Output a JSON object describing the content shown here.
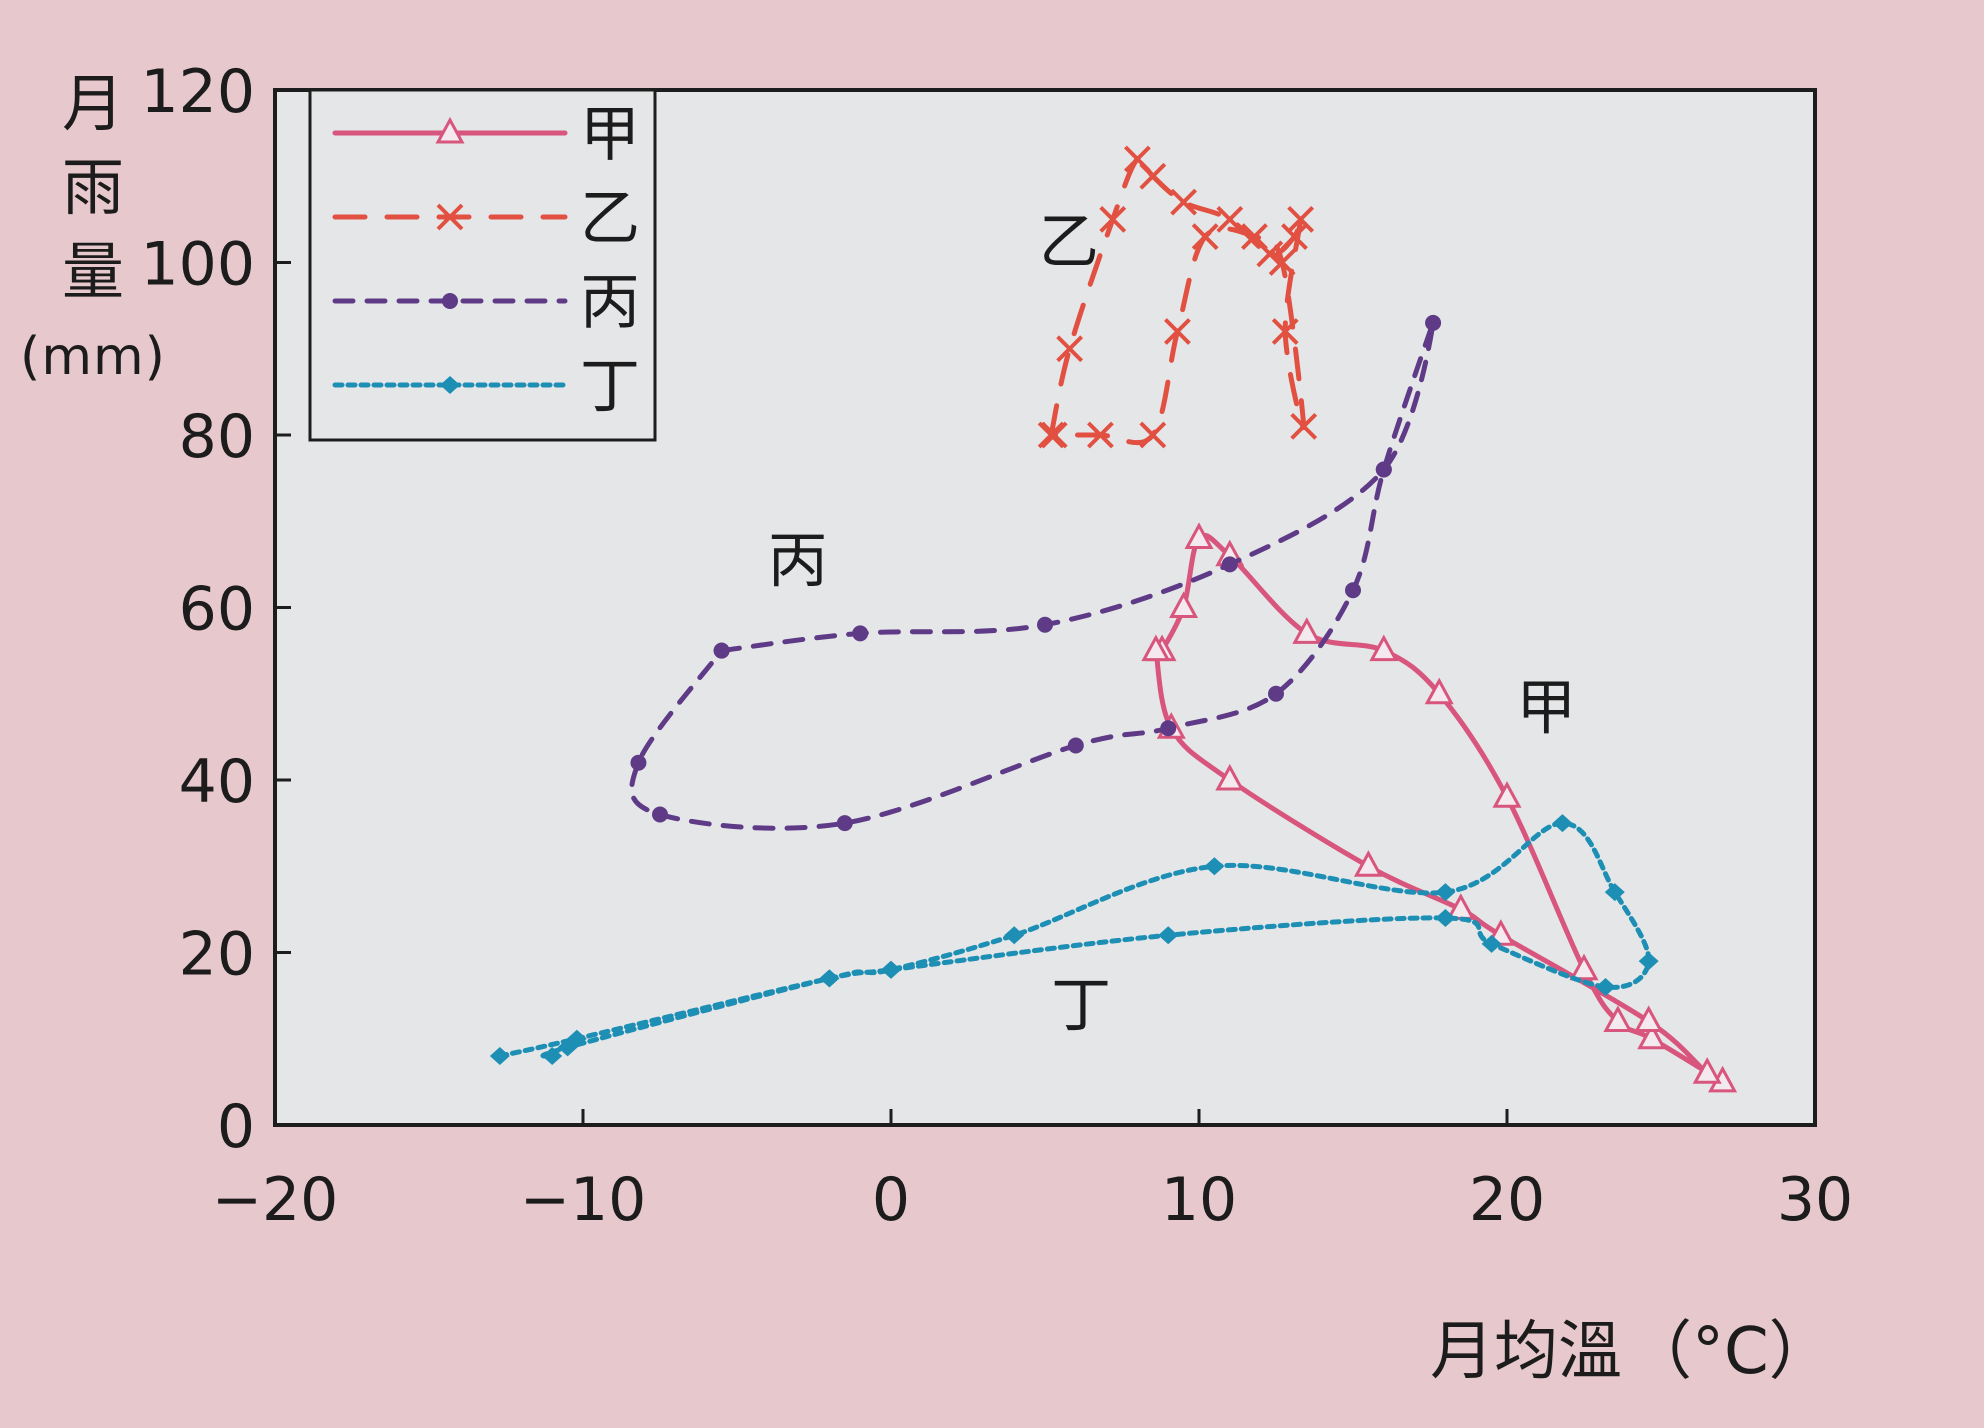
{
  "chart_data": {
    "type": "line",
    "xlabel": "月均溫",
    "xlabel_unit": "（°C）",
    "ylabel": "月雨量",
    "ylabel_unit": "(mm)",
    "xlim": [
      -20,
      30
    ],
    "ylim": [
      0,
      120
    ],
    "xticks": [
      -20,
      -10,
      0,
      10,
      20,
      30
    ],
    "yticks": [
      0,
      20,
      40,
      60,
      80,
      100,
      120
    ],
    "grid": false,
    "legend_position": "top-left",
    "series": [
      {
        "name": "甲",
        "color": "#d8557d",
        "dash": "solid",
        "marker": "triangle",
        "annotation": "甲",
        "annotation_xy": [
          20.3,
          46
        ],
        "points": [
          [
            8.8,
            55
          ],
          [
            9.5,
            60
          ],
          [
            10,
            68
          ],
          [
            11,
            66
          ],
          [
            13.5,
            57
          ],
          [
            16,
            55
          ],
          [
            17.8,
            50
          ],
          [
            20,
            38
          ],
          [
            22.5,
            18
          ],
          [
            23.6,
            12
          ],
          [
            24.7,
            10
          ],
          [
            27,
            5
          ],
          [
            26.5,
            6
          ],
          [
            24.6,
            12
          ],
          [
            19.8,
            22
          ],
          [
            18.5,
            25
          ],
          [
            15.5,
            30
          ],
          [
            11,
            40
          ],
          [
            9.1,
            46
          ],
          [
            8.6,
            55
          ]
        ]
      },
      {
        "name": "乙",
        "color": "#e15040",
        "dash": "long",
        "marker": "x",
        "annotation": "乙",
        "annotation_xy": [
          4.8,
          100
        ],
        "points": [
          [
            5.2,
            80
          ],
          [
            5.8,
            90
          ],
          [
            7.2,
            105
          ],
          [
            8,
            112
          ],
          [
            8.5,
            110
          ],
          [
            9.5,
            107
          ],
          [
            11,
            105
          ],
          [
            12.3,
            101
          ],
          [
            13.1,
            103
          ],
          [
            13.3,
            105
          ],
          [
            12.8,
            92
          ],
          [
            13.4,
            81
          ],
          [
            12.7,
            100
          ],
          [
            11.8,
            103
          ],
          [
            10.2,
            103
          ],
          [
            9.3,
            92
          ],
          [
            8.5,
            80
          ],
          [
            6.8,
            80
          ],
          [
            5.3,
            80
          ]
        ]
      },
      {
        "name": "丙",
        "color": "#5f3b87",
        "dash": "short",
        "marker": "dot",
        "annotation": "丙",
        "annotation_xy": [
          -4,
          63
        ],
        "points": [
          [
            -5.5,
            55
          ],
          [
            -1,
            57
          ],
          [
            5,
            58
          ],
          [
            11,
            65
          ],
          [
            16,
            76
          ],
          [
            17.6,
            93
          ],
          [
            16,
            76
          ],
          [
            15,
            62
          ],
          [
            12.5,
            50
          ],
          [
            9,
            46
          ],
          [
            6,
            44
          ],
          [
            -1.5,
            35
          ],
          [
            -7.5,
            36
          ],
          [
            -8.2,
            42
          ],
          [
            -5.5,
            55
          ]
        ]
      },
      {
        "name": "丁",
        "color": "#1e8fb4",
        "dash": "dot",
        "marker": "diamond",
        "annotation": "丁",
        "annotation_xy": [
          5.2,
          11.5
        ],
        "points": [
          [
            -12.7,
            8
          ],
          [
            -10.2,
            10
          ],
          [
            -2,
            17
          ],
          [
            0,
            18
          ],
          [
            4,
            22
          ],
          [
            10.5,
            30
          ],
          [
            18,
            27
          ],
          [
            21.8,
            35
          ],
          [
            23.5,
            27
          ],
          [
            24.6,
            19
          ],
          [
            23.2,
            16
          ],
          [
            19.5,
            21
          ],
          [
            18,
            24
          ],
          [
            9,
            22
          ],
          [
            0,
            18
          ],
          [
            -2,
            17
          ],
          [
            -10.5,
            9
          ],
          [
            -11,
            8
          ]
        ]
      }
    ]
  }
}
